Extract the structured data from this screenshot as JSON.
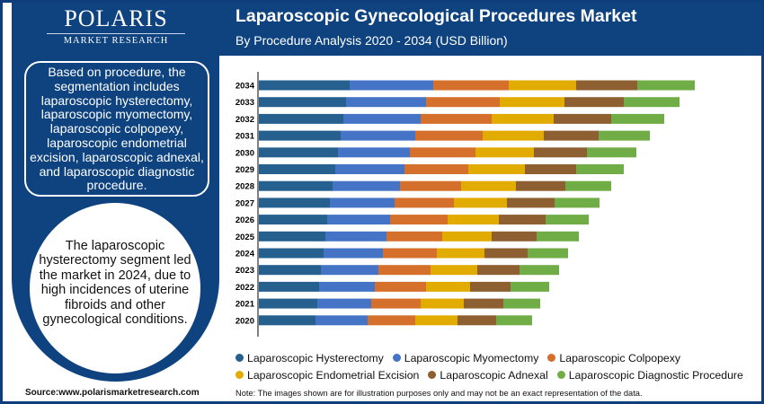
{
  "logo": {
    "name": "POLARIS",
    "tagline": "MARKET RESEARCH"
  },
  "header": {
    "title": "Laparoscopic Gynecological Procedures Market",
    "subtitle": "By Procedure Analysis 2020 - 2034 (USD Billion)"
  },
  "sidebar": {
    "segment_text": "Based on procedure, the segmentation includes laparoscopic hysterectomy, laparoscopic myomectomy, laparoscopic colpopexy, laparoscopic endometrial excision, laparoscopic adnexal, and laparoscopic diagnostic procedure.",
    "highlight_text": "The laparoscopic hysterectomy segment led the market in 2024, due to high incidences of uterine fibroids and other gynecological conditions."
  },
  "footer": {
    "source": "Source:www.polarismarketresearch.com",
    "note": "Note: The images shown are for illustration purposes only and may not be an exact representation of the data."
  },
  "chart_data": {
    "type": "bar",
    "orientation": "horizontal",
    "stacked": true,
    "grid": false,
    "legend_placement": "bottom",
    "categories": [
      "2034",
      "2033",
      "2032",
      "2031",
      "2030",
      "2029",
      "2028",
      "2027",
      "2026",
      "2025",
      "2024",
      "2023",
      "2022",
      "2021",
      "2020"
    ],
    "series": [
      {
        "name": "Laparoscopic Hysterectomy",
        "color": "#25608f",
        "values": [
          1.01,
          0.97,
          0.94,
          0.91,
          0.88,
          0.85,
          0.82,
          0.79,
          0.76,
          0.74,
          0.72,
          0.69,
          0.67,
          0.65,
          0.63
        ]
      },
      {
        "name": "Laparoscopic Myomectomy",
        "color": "#4574c6",
        "values": [
          0.93,
          0.89,
          0.86,
          0.83,
          0.8,
          0.77,
          0.75,
          0.72,
          0.7,
          0.68,
          0.66,
          0.64,
          0.62,
          0.6,
          0.58
        ]
      },
      {
        "name": "Laparoscopic Colpopexy",
        "color": "#d56f2c",
        "values": [
          0.84,
          0.82,
          0.79,
          0.75,
          0.73,
          0.71,
          0.68,
          0.66,
          0.64,
          0.62,
          0.6,
          0.58,
          0.57,
          0.55,
          0.53
        ]
      },
      {
        "name": "Laparoscopic Endometrial Excision",
        "color": "#e2ab00",
        "values": [
          0.75,
          0.72,
          0.69,
          0.68,
          0.65,
          0.63,
          0.61,
          0.59,
          0.57,
          0.55,
          0.53,
          0.52,
          0.49,
          0.48,
          0.47
        ]
      },
      {
        "name": "Laparoscopic Adnexal",
        "color": "#8d5f31",
        "values": [
          0.68,
          0.66,
          0.64,
          0.61,
          0.59,
          0.57,
          0.55,
          0.53,
          0.52,
          0.5,
          0.48,
          0.47,
          0.45,
          0.44,
          0.43
        ]
      },
      {
        "name": "Laparoscopic Diagnostic Procedure",
        "color": "#70ad47",
        "values": [
          0.64,
          0.62,
          0.59,
          0.57,
          0.55,
          0.53,
          0.51,
          0.5,
          0.48,
          0.47,
          0.45,
          0.44,
          0.43,
          0.41,
          0.4
        ]
      }
    ]
  }
}
